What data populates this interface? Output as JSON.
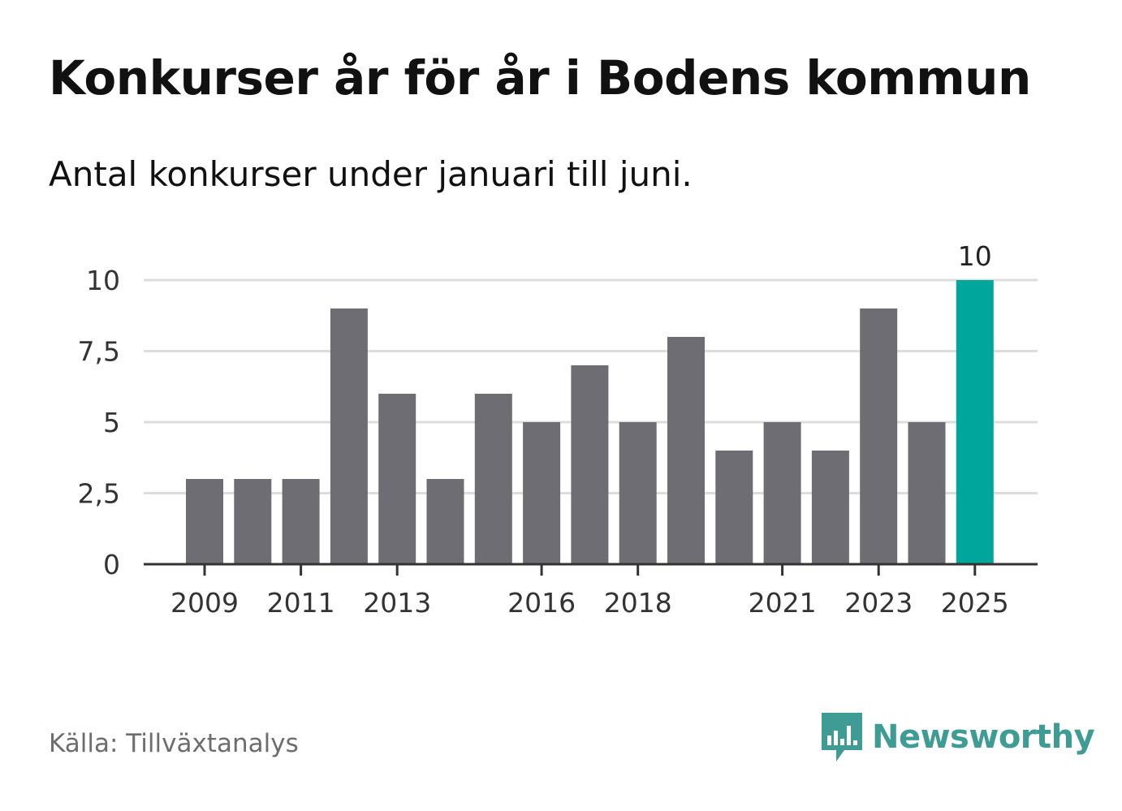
{
  "title": "Konkurser år för år i Bodens kommun",
  "subtitle": "Antal konkurser under januari till juni.",
  "source": "Källa: Tillväxtanalys",
  "logo": {
    "text": "Newsworthy",
    "icon": "newsworthy-bars-icon",
    "color": "#3f9c94"
  },
  "colors": {
    "bar": "#6e6d73",
    "highlight": "#00a59b",
    "grid": "#dddddd",
    "axis": "#333333"
  },
  "chart_data": {
    "type": "bar",
    "categories": [
      "2009",
      "2010",
      "2011",
      "2012",
      "2013",
      "2014",
      "2015",
      "2016",
      "2017",
      "2018",
      "2019",
      "2020",
      "2021",
      "2022",
      "2023",
      "2024",
      "2025"
    ],
    "values": [
      3,
      3,
      3,
      9,
      6,
      3,
      6,
      5,
      7,
      5,
      8,
      4,
      5,
      4,
      9,
      5,
      10
    ],
    "highlight_category": "2025",
    "x_tick_labels": [
      "2009",
      "2011",
      "2013",
      "2016",
      "2018",
      "2021",
      "2023",
      "2025"
    ],
    "y_ticks": [
      0,
      2.5,
      5,
      7.5,
      10
    ],
    "y_tick_labels": [
      "0",
      "2,5",
      "5",
      "7,5",
      "10"
    ],
    "data_labels": [
      {
        "category": "2025",
        "text": "10"
      }
    ],
    "ylim": [
      0,
      10
    ],
    "grid": true,
    "xlabel": "",
    "ylabel": ""
  }
}
